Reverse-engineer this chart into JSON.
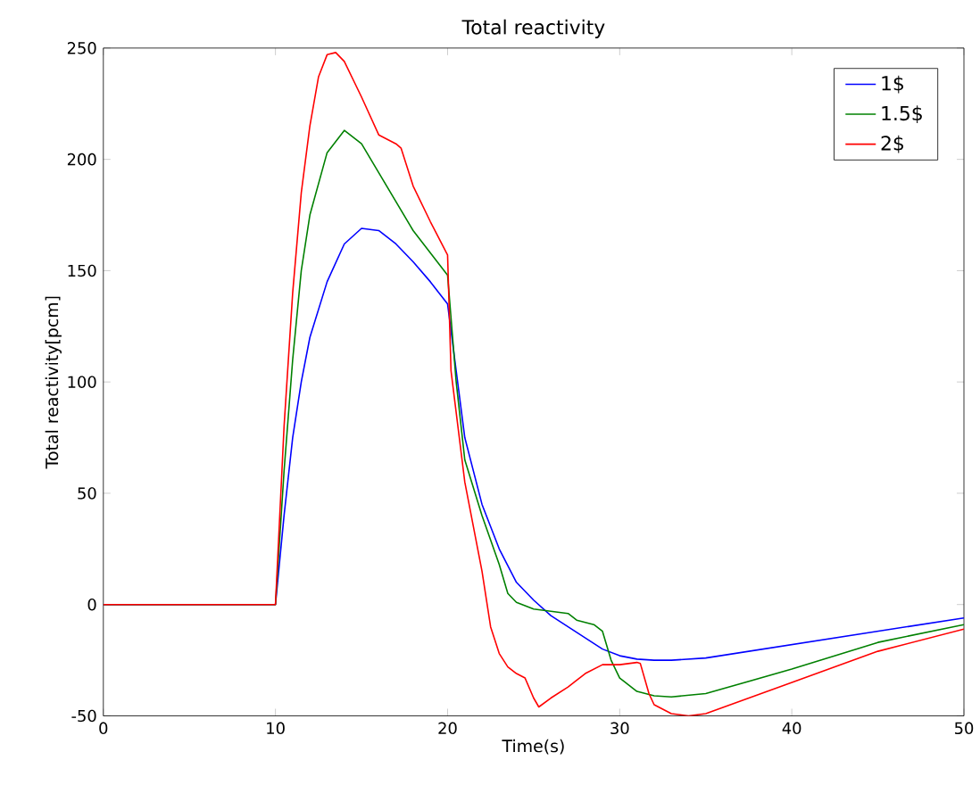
{
  "chart_data": {
    "type": "line",
    "title": "Total reactivity",
    "xlabel": "Time(s)",
    "ylabel": "Total reactivity[pcm]",
    "xlim": [
      0,
      50
    ],
    "ylim": [
      -50,
      250
    ],
    "xticks": [
      0,
      10,
      20,
      30,
      40,
      50
    ],
    "yticks": [
      -50,
      0,
      50,
      100,
      150,
      200,
      250
    ],
    "grid": false,
    "legend": "top right",
    "marker": "none",
    "line_style": "solid",
    "series": [
      {
        "name": "1$",
        "color": "#0000ff",
        "x": [
          0,
          10,
          10.5,
          11,
          11.5,
          12,
          13,
          14,
          15,
          16,
          17,
          18,
          19,
          20,
          21,
          22,
          23,
          24,
          25,
          26,
          27,
          28,
          29,
          30,
          31,
          32,
          33,
          35,
          40,
          45,
          50
        ],
        "values": [
          0,
          0,
          40,
          75,
          100,
          120,
          145,
          162,
          169,
          168,
          162,
          154,
          145,
          135,
          75,
          45,
          25,
          10,
          2,
          -5,
          -10,
          -15,
          -20,
          -23,
          -24.5,
          -25,
          -25,
          -24,
          -18,
          -12,
          -6
        ]
      },
      {
        "name": "1.5$",
        "color": "#008000",
        "x": [
          0,
          10,
          10.5,
          11,
          11.5,
          12,
          13,
          14,
          15,
          16,
          17,
          18,
          19,
          19.8,
          20,
          20.5,
          21,
          22,
          23,
          23.5,
          24,
          25,
          26,
          27,
          27.5,
          28.5,
          29,
          29.5,
          30,
          31,
          32,
          33,
          35,
          40,
          45,
          50
        ],
        "values": [
          0,
          0,
          60,
          110,
          150,
          175,
          203,
          213,
          207,
          194,
          181,
          168,
          158,
          150,
          148,
          100,
          65,
          40,
          18,
          5,
          1,
          -2,
          -3,
          -4,
          -7,
          -9,
          -12,
          -25,
          -33,
          -39,
          -41,
          -41.5,
          -40,
          -29,
          -17,
          -9
        ]
      },
      {
        "name": "2$",
        "color": "#ff0000",
        "x": [
          0,
          10,
          10.5,
          11,
          11.5,
          12,
          12.5,
          13,
          13.5,
          14,
          15,
          16,
          17,
          17.3,
          18,
          19,
          20,
          20.2,
          21,
          22,
          22.5,
          23,
          23.5,
          24,
          24.5,
          25,
          25.3,
          26,
          27,
          28,
          29,
          30,
          31,
          31.2,
          31.7,
          32,
          33,
          34,
          35,
          40,
          45,
          50
        ],
        "values": [
          0,
          0,
          80,
          140,
          185,
          215,
          237,
          247,
          248,
          244,
          228,
          211,
          207,
          205,
          188,
          172,
          157,
          105,
          55,
          15,
          -10,
          -22,
          -28,
          -31,
          -33,
          -42,
          -46,
          -42,
          -37,
          -31,
          -27,
          -27,
          -26,
          -26.5,
          -40,
          -45,
          -49,
          -50,
          -49,
          -35,
          -21,
          -11
        ]
      }
    ]
  }
}
